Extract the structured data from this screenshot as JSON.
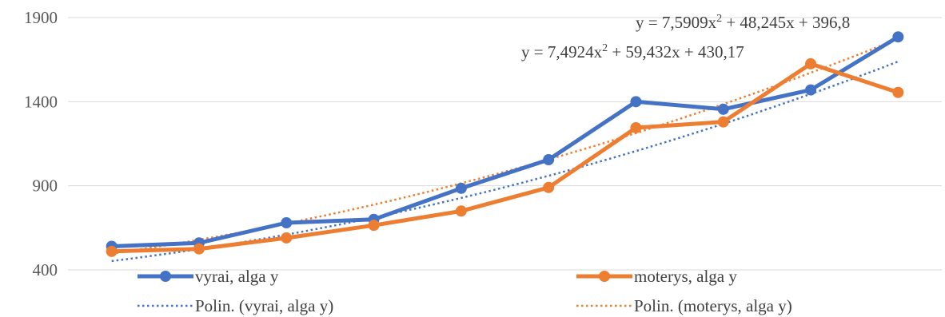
{
  "chart_data": {
    "type": "line",
    "x": [
      1,
      2,
      3,
      4,
      5,
      6,
      7,
      8,
      9,
      10
    ],
    "ylim": [
      400,
      1900
    ],
    "yticks": [
      400,
      900,
      1400,
      1900
    ],
    "grid": true,
    "legend_position": "bottom",
    "series": [
      {
        "name": "vyrai, alga y",
        "color": "#4472C4",
        "values": [
          540,
          560,
          680,
          700,
          885,
          1055,
          1400,
          1355,
          1470,
          1785
        ]
      },
      {
        "name": "moterys, alga y",
        "color": "#ED7D31",
        "values": [
          510,
          525,
          590,
          665,
          750,
          890,
          1245,
          1280,
          1625,
          1455
        ]
      }
    ],
    "trendlines": [
      {
        "name": "Polin. (vyrai, alga y)",
        "color": "#4472C4",
        "order": 2,
        "coefficients": [
          7.5909,
          48.245,
          396.8
        ],
        "equation": "y = 7,5909x² + 48,245x + 396,8"
      },
      {
        "name": "Polin. (moterys, alga y)",
        "color": "#ED7D31",
        "order": 2,
        "coefficients": [
          7.4924,
          59.432,
          430.17
        ],
        "equation": "y = 7,4924x² + 59,432x + 430,17"
      }
    ]
  }
}
